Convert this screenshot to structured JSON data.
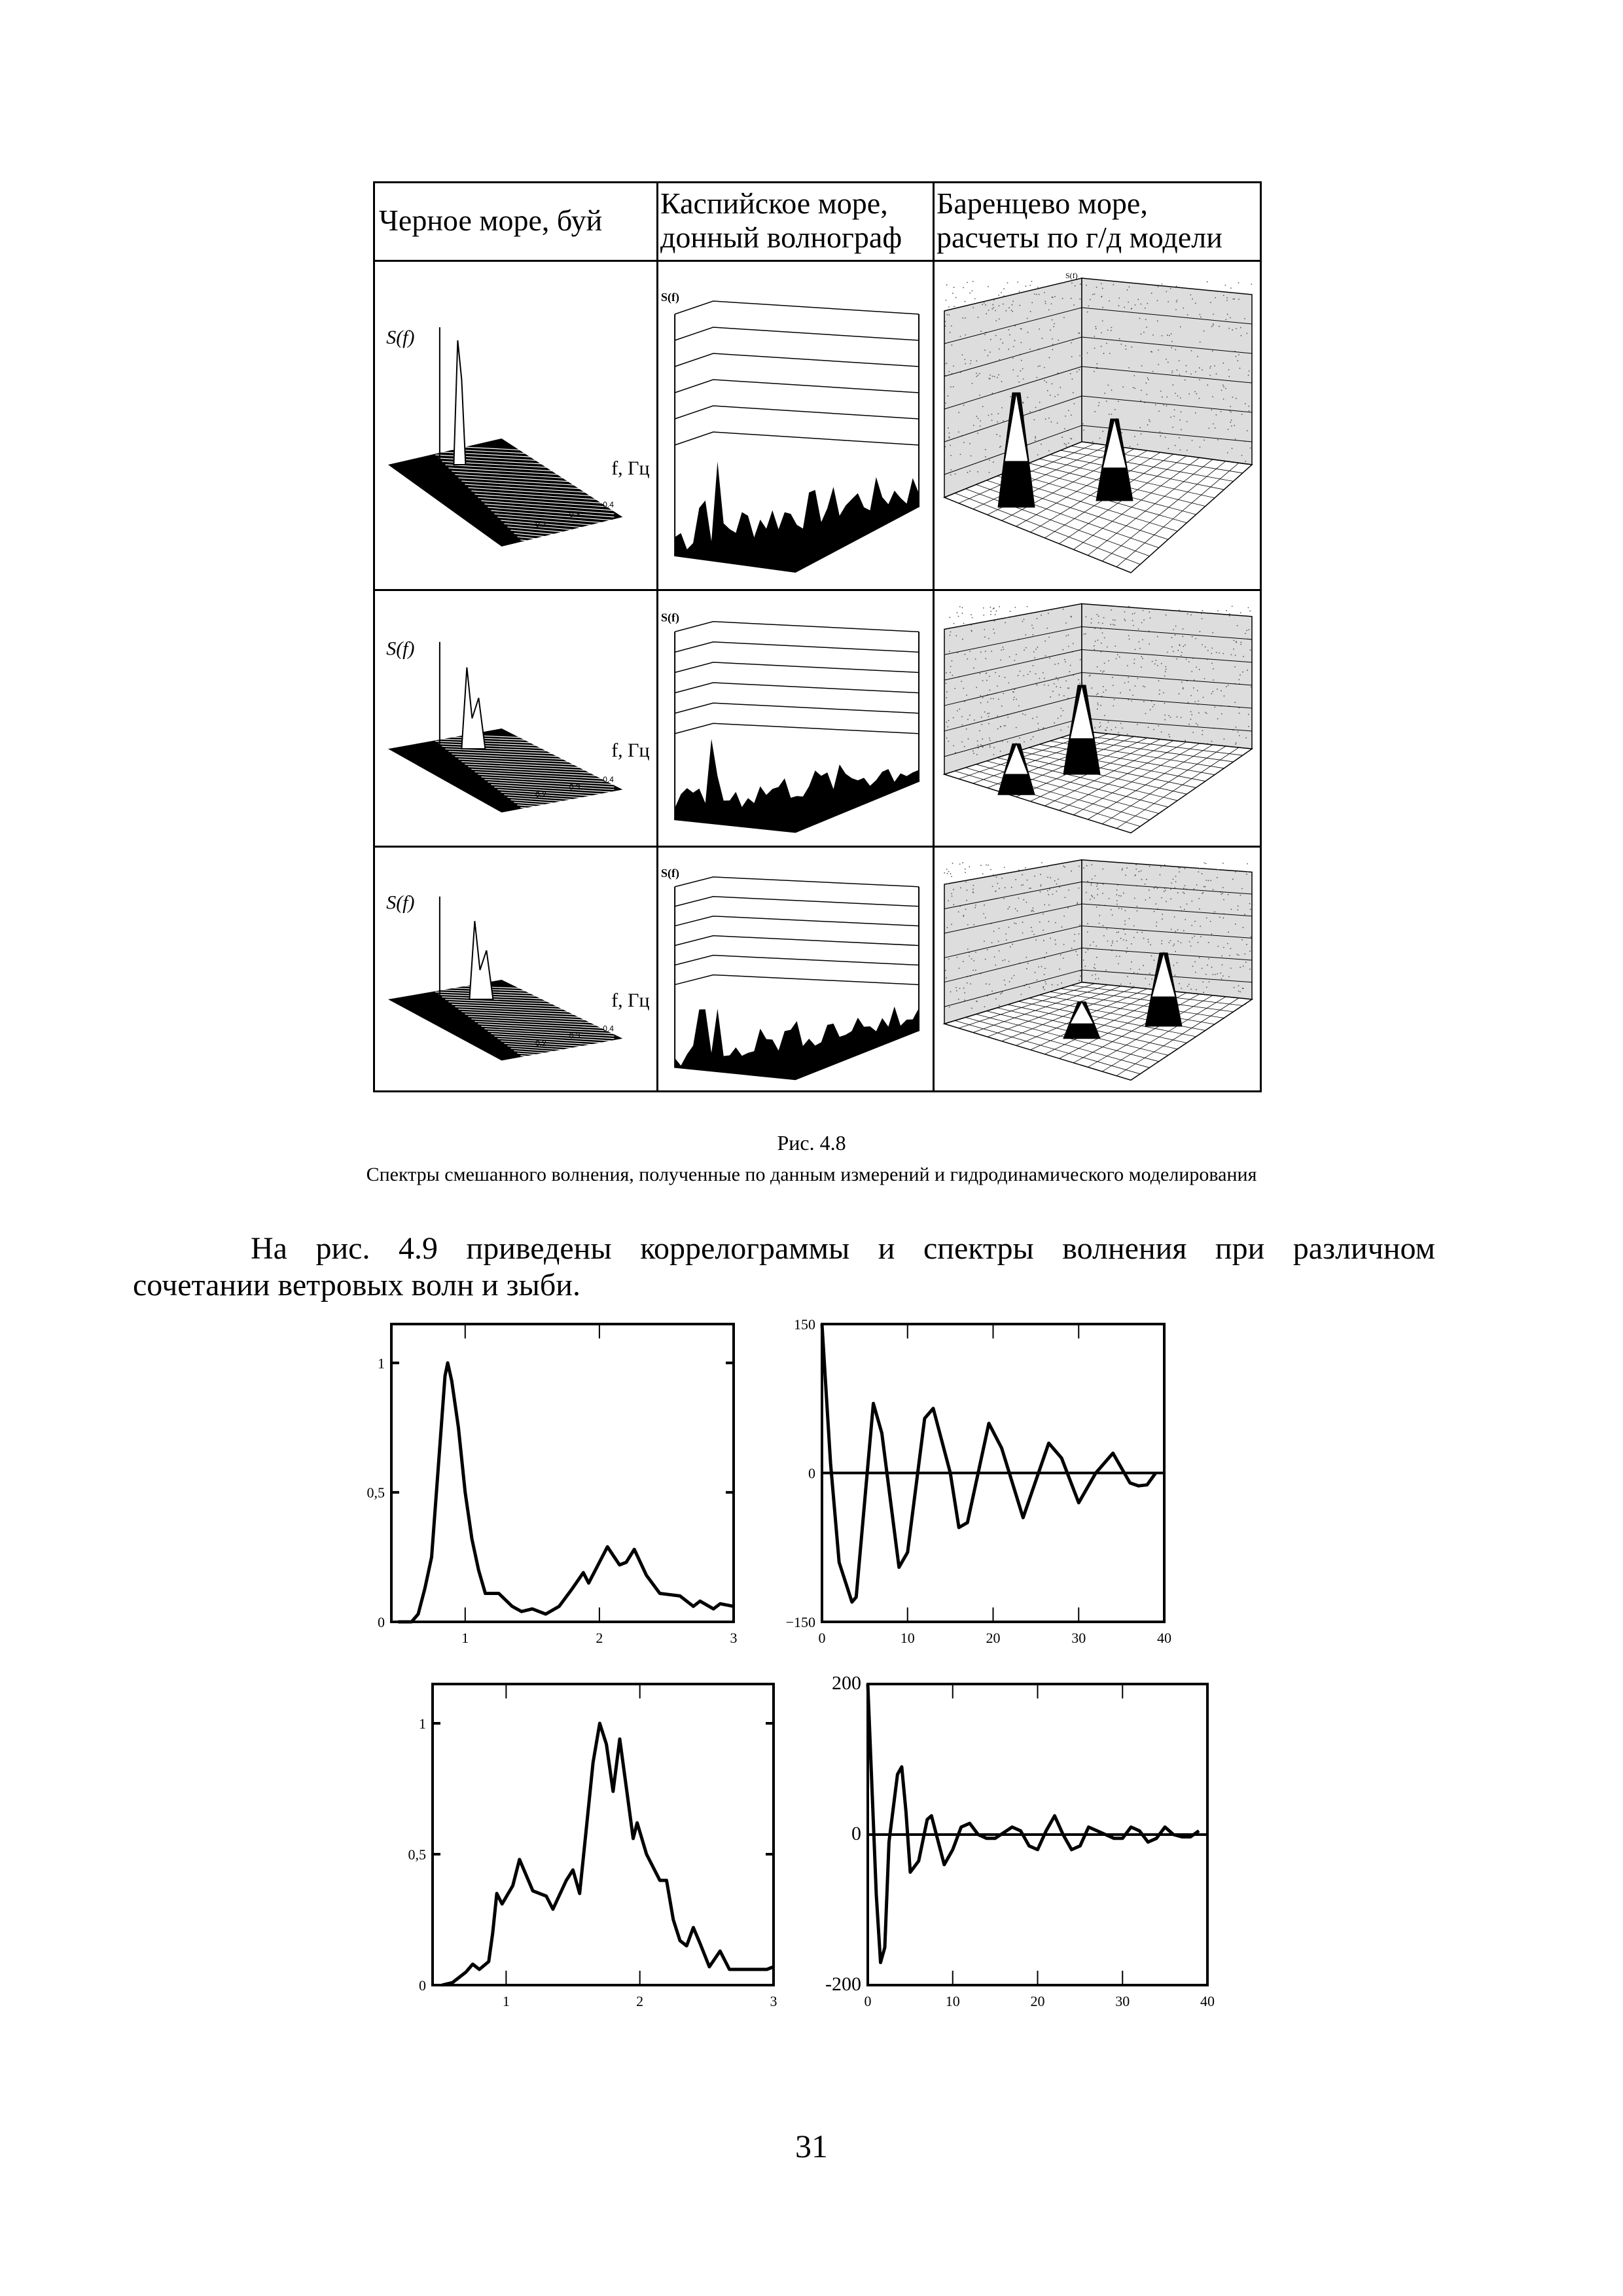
{
  "figure_4_8": {
    "headers": [
      {
        "line1": "Черное море, буй",
        "line2": ""
      },
      {
        "line1": "Каспийское море,",
        "line2": "донный волнограф"
      },
      {
        "line1": "Баренцево море,",
        "line2": "расчеты по г/д модели"
      }
    ],
    "axis_label_s": "S(f)",
    "axis_label_f": "f, Гц",
    "freq_ticks": [
      "0.1",
      "0.2",
      "0.3",
      "0.4"
    ],
    "caption_number": "Рис. 4.8",
    "caption_text": "Спектры смешанного волнения, полученные по данным измерений и гидродинамического моделирования"
  },
  "paragraph": {
    "line1": "На рис. 4.9 приведены коррелограммы и спектры волнения при различном",
    "line2": "сочетании ветровых волн и зыби."
  },
  "chart_data": [
    {
      "type": "line",
      "title": "",
      "xlabel": "",
      "ylabel": "",
      "xlim": [
        0.45,
        3
      ],
      "ylim": [
        0,
        1.15
      ],
      "grid": false,
      "xticks": [
        "1",
        "2",
        "3"
      ],
      "yticks": [
        "0",
        "0,5",
        "1"
      ],
      "x": [
        0.5,
        0.6,
        0.65,
        0.7,
        0.75,
        0.8,
        0.85,
        0.87,
        0.9,
        0.95,
        1.0,
        1.05,
        1.1,
        1.15,
        1.25,
        1.35,
        1.42,
        1.5,
        1.55,
        1.6,
        1.7,
        1.8,
        1.88,
        1.92,
        2.0,
        2.06,
        2.15,
        2.2,
        2.26,
        2.35,
        2.45,
        2.6,
        2.7,
        2.75,
        2.85,
        2.9,
        3.0
      ],
      "y": [
        0,
        0,
        0.03,
        0.13,
        0.25,
        0.6,
        0.95,
        1.0,
        0.93,
        0.75,
        0.5,
        0.32,
        0.2,
        0.11,
        0.11,
        0.06,
        0.04,
        0.05,
        0.04,
        0.03,
        0.06,
        0.13,
        0.19,
        0.15,
        0.23,
        0.29,
        0.22,
        0.23,
        0.28,
        0.18,
        0.11,
        0.1,
        0.06,
        0.08,
        0.05,
        0.07,
        0.06
      ]
    },
    {
      "type": "line",
      "title": "",
      "xlabel": "",
      "ylabel": "",
      "xlim": [
        0,
        40
      ],
      "ylim": [
        -150,
        150
      ],
      "grid": false,
      "zero_line": true,
      "xticks": [
        "0",
        "10",
        "20",
        "30",
        "40"
      ],
      "yticks": [
        "−150",
        "0",
        "150"
      ],
      "x": [
        0,
        0.5,
        1,
        2,
        3.5,
        4,
        6,
        7,
        9,
        10,
        12,
        13,
        15,
        16,
        17,
        19.5,
        21,
        23.5,
        26.5,
        28,
        30,
        32,
        34,
        36,
        37,
        38,
        39
      ],
      "y": [
        150,
        80,
        10,
        -90,
        -130,
        -125,
        70,
        40,
        -95,
        -80,
        55,
        65,
        0,
        -55,
        -50,
        50,
        25,
        -45,
        30,
        15,
        -30,
        0,
        20,
        -10,
        -13,
        -12,
        0
      ]
    },
    {
      "type": "line",
      "title": "",
      "xlabel": "",
      "ylabel": "",
      "xlim": [
        0.45,
        3
      ],
      "ylim": [
        0,
        1.15
      ],
      "grid": false,
      "xticks": [
        "1",
        "2",
        "3"
      ],
      "yticks": [
        "0",
        "0,5",
        "1"
      ],
      "x": [
        0.52,
        0.6,
        0.7,
        0.75,
        0.8,
        0.87,
        0.9,
        0.93,
        0.97,
        1.05,
        1.1,
        1.2,
        1.3,
        1.35,
        1.45,
        1.5,
        1.55,
        1.6,
        1.65,
        1.7,
        1.75,
        1.8,
        1.85,
        1.9,
        1.95,
        1.98,
        2.05,
        2.15,
        2.2,
        2.25,
        2.3,
        2.35,
        2.4,
        2.45,
        2.52,
        2.6,
        2.67,
        2.8,
        2.95,
        3.0
      ],
      "y": [
        0,
        0.01,
        0.05,
        0.08,
        0.06,
        0.09,
        0.2,
        0.35,
        0.31,
        0.38,
        0.48,
        0.36,
        0.34,
        0.29,
        0.4,
        0.44,
        0.35,
        0.6,
        0.85,
        1.0,
        0.92,
        0.74,
        0.94,
        0.75,
        0.56,
        0.62,
        0.5,
        0.4,
        0.4,
        0.25,
        0.17,
        0.15,
        0.22,
        0.16,
        0.07,
        0.13,
        0.06,
        0.06,
        0.06,
        0.07
      ]
    },
    {
      "type": "line",
      "title": "",
      "xlabel": "",
      "ylabel": "",
      "xlim": [
        0,
        40
      ],
      "ylim": [
        -200,
        200
      ],
      "grid": false,
      "zero_line": true,
      "xticks": [
        "0",
        "10",
        "20",
        "30",
        "40"
      ],
      "yticks": [
        "-200",
        "0",
        "200"
      ],
      "x": [
        0,
        0.5,
        1,
        1.5,
        2,
        2.5,
        3.5,
        4,
        4.5,
        5,
        6,
        7,
        7.5,
        9,
        10,
        11,
        12,
        13,
        14,
        15,
        17,
        18,
        19,
        20,
        21,
        22,
        23,
        24,
        25,
        26,
        28,
        29,
        30,
        31,
        32,
        33,
        34,
        35,
        36,
        37,
        38,
        39
      ],
      "y": [
        200,
        60,
        -80,
        -170,
        -150,
        -10,
        80,
        90,
        30,
        -50,
        -35,
        20,
        25,
        -40,
        -20,
        10,
        15,
        0,
        -5,
        -5,
        10,
        5,
        -15,
        -20,
        5,
        25,
        0,
        -20,
        -15,
        10,
        0,
        -5,
        -5,
        10,
        5,
        -10,
        -5,
        10,
        0,
        -3,
        -3,
        5
      ]
    }
  ],
  "page_number": "31"
}
